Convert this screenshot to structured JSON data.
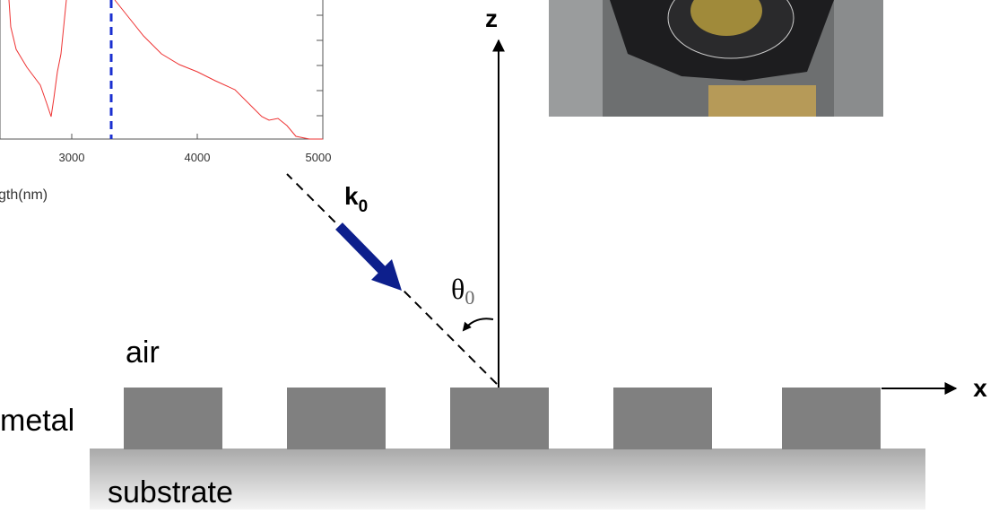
{
  "inset_chart": {
    "xtick_labels": [
      "3000",
      "4000",
      "5000"
    ],
    "xlabel": "gth(nm)"
  },
  "labels": {
    "z": "z",
    "x": "x",
    "k": "k",
    "k_sub": "0",
    "theta": "θ",
    "theta_sub": "0",
    "air": "air",
    "metal": "metal",
    "substrate": "substrate"
  }
}
